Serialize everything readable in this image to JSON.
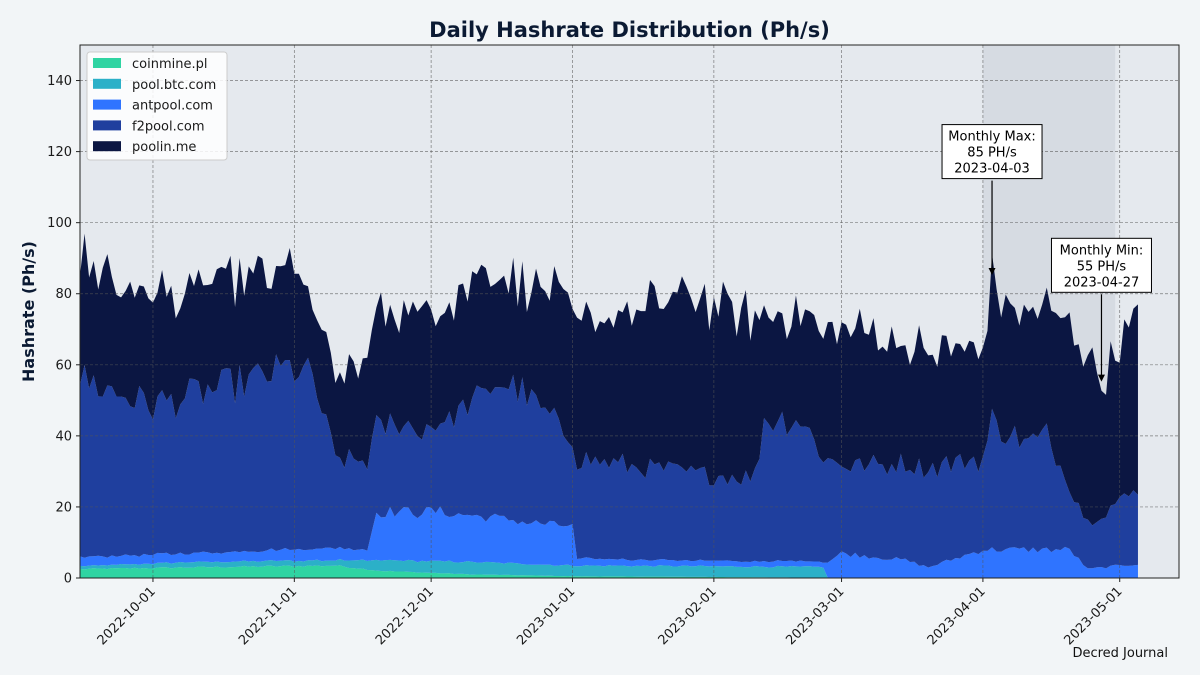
{
  "chart_data": {
    "type": "area",
    "stacked": true,
    "title": "Daily Hashrate Distribution (Ph/s)",
    "xlabel": "",
    "ylabel": "Hashrate (Ph/s)",
    "xlim": [
      "2022-09-15",
      "2023-05-14"
    ],
    "ylim": [
      0,
      150
    ],
    "yticks": [
      0,
      20,
      40,
      60,
      80,
      100,
      120,
      140
    ],
    "xticks": [
      "2022-10-01",
      "2022-11-01",
      "2022-12-01",
      "2023-01-01",
      "2023-02-01",
      "2023-03-01",
      "2023-04-01",
      "2023-05-01"
    ],
    "grid": true,
    "legend_position": "upper-left",
    "highlight_span": [
      "2023-04-01",
      "2023-04-30"
    ],
    "series": [
      {
        "name": "coinmine.pl",
        "color": "#2fd4a2",
        "keyframes": [
          [
            "2022-09-15",
            2.5
          ],
          [
            "2022-10-10",
            3.0
          ],
          [
            "2022-11-10",
            3.5
          ],
          [
            "2022-11-20",
            2.0
          ],
          [
            "2022-12-10",
            1.0
          ],
          [
            "2023-01-01",
            0.5
          ],
          [
            "2023-01-31",
            0.3
          ],
          [
            "2023-02-25",
            0.1
          ],
          [
            "2023-02-26",
            0
          ],
          [
            "2023-05-05",
            0
          ]
        ]
      },
      {
        "name": "pool.btc.com",
        "color": "#2bb0c8",
        "keyframes": [
          [
            "2022-09-15",
            0.8
          ],
          [
            "2022-10-10",
            1.5
          ],
          [
            "2022-11-10",
            1.5
          ],
          [
            "2022-11-20",
            3.0
          ],
          [
            "2022-12-10",
            3.5
          ],
          [
            "2023-01-01",
            3.0
          ],
          [
            "2023-01-31",
            3.0
          ],
          [
            "2023-02-25",
            3.0
          ],
          [
            "2023-02-26",
            0
          ],
          [
            "2023-05-05",
            0
          ]
        ]
      },
      {
        "name": "antpool.com",
        "color": "#2f74ff",
        "keyframes": [
          [
            "2022-09-15",
            2.5
          ],
          [
            "2022-10-10",
            2.5
          ],
          [
            "2022-11-10",
            3.5
          ],
          [
            "2022-11-17",
            3.0
          ],
          [
            "2022-11-19",
            13.5
          ],
          [
            "2022-12-01",
            14.0
          ],
          [
            "2022-12-20",
            12.0
          ],
          [
            "2023-01-01",
            11.0
          ],
          [
            "2023-01-02",
            2.0
          ],
          [
            "2023-01-31",
            1.5
          ],
          [
            "2023-02-25",
            1.5
          ],
          [
            "2023-02-26",
            4.5
          ],
          [
            "2023-03-01",
            7.0
          ],
          [
            "2023-03-15",
            5.0
          ],
          [
            "2023-03-20",
            3.0
          ],
          [
            "2023-04-01",
            8.0
          ],
          [
            "2023-04-20",
            8.0
          ],
          [
            "2023-04-24",
            2.5
          ],
          [
            "2023-05-05",
            4.0
          ]
        ]
      },
      {
        "name": "f2pool.com",
        "color": "#1f3f9e",
        "keyframes": [
          [
            "2022-09-15",
            50
          ],
          [
            "2022-10-01",
            42
          ],
          [
            "2022-10-15",
            46
          ],
          [
            "2022-11-01",
            51
          ],
          [
            "2022-11-05",
            48
          ],
          [
            "2022-11-10",
            25
          ],
          [
            "2022-11-20",
            25
          ],
          [
            "2022-12-01",
            23
          ],
          [
            "2022-12-15",
            37
          ],
          [
            "2022-12-20",
            38
          ],
          [
            "2023-01-01",
            24
          ],
          [
            "2023-01-02",
            28
          ],
          [
            "2023-01-31",
            24
          ],
          [
            "2023-02-10",
            24
          ],
          [
            "2023-02-12",
            40
          ],
          [
            "2023-02-20",
            40
          ],
          [
            "2023-02-25",
            30
          ],
          [
            "2023-03-01",
            25
          ],
          [
            "2023-03-20",
            28
          ],
          [
            "2023-04-01",
            26
          ],
          [
            "2023-04-03",
            36
          ],
          [
            "2023-04-05",
            34
          ],
          [
            "2023-04-10",
            30
          ],
          [
            "2023-04-15",
            32
          ],
          [
            "2023-04-20",
            18
          ],
          [
            "2023-04-24",
            13
          ],
          [
            "2023-05-05",
            21
          ]
        ]
      },
      {
        "name": "poolin.me",
        "color": "#0b1642",
        "keyframes": [
          [
            "2022-09-15",
            35
          ],
          [
            "2022-10-01",
            30
          ],
          [
            "2022-10-15",
            30
          ],
          [
            "2022-11-01",
            28
          ],
          [
            "2022-11-05",
            20
          ],
          [
            "2022-11-10",
            22
          ],
          [
            "2022-11-20",
            32
          ],
          [
            "2022-12-01",
            34
          ],
          [
            "2022-12-15",
            33
          ],
          [
            "2022-12-20",
            29
          ],
          [
            "2023-01-01",
            38
          ],
          [
            "2023-01-31",
            50
          ],
          [
            "2023-02-10",
            44
          ],
          [
            "2023-02-12",
            31
          ],
          [
            "2023-02-20",
            31
          ],
          [
            "2023-02-25",
            35
          ],
          [
            "2023-03-01",
            39
          ],
          [
            "2023-03-20",
            33
          ],
          [
            "2023-04-01",
            31
          ],
          [
            "2023-04-03",
            39
          ],
          [
            "2023-04-05",
            38
          ],
          [
            "2023-04-10",
            35
          ],
          [
            "2023-04-15",
            35
          ],
          [
            "2023-04-20",
            47
          ],
          [
            "2023-04-24",
            48
          ],
          [
            "2023-04-27",
            39
          ],
          [
            "2023-05-05",
            48
          ]
        ]
      }
    ],
    "annotations": [
      {
        "label": "Monthly Max:\n85 PH/s\n2023-04-03",
        "x": "2023-04-03",
        "y": 85,
        "text_x": "2023-04-03",
        "text_y": 120
      },
      {
        "label": "Monthly Min:\n55 PH/s\n2023-04-27",
        "x": "2023-04-27",
        "y": 55,
        "text_x": "2023-04-27",
        "text_y": 88
      }
    ]
  },
  "credit": "Decred Journal"
}
